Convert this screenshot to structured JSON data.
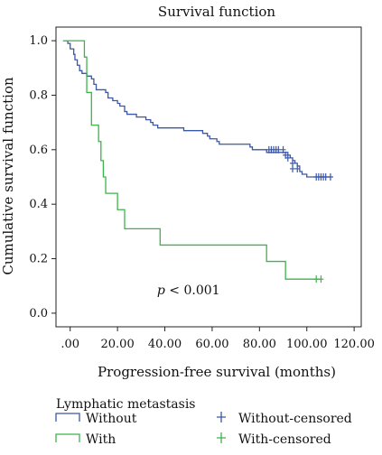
{
  "chart_data": {
    "type": "line",
    "title": "Survival function",
    "xlabel": "Progression-free survival (months)",
    "ylabel": "Cumulative survival function",
    "xlim": [
      -6,
      123
    ],
    "ylim": [
      -0.05,
      1.05
    ],
    "xticks": [
      0,
      20,
      40,
      60,
      80,
      100,
      120
    ],
    "xtick_labels": [
      ".00",
      "20.00",
      "40.00",
      "60.00",
      "80.00",
      "100.00",
      "120.00"
    ],
    "yticks": [
      0.0,
      0.2,
      0.4,
      0.6,
      0.8,
      1.0
    ],
    "ytick_labels": [
      "0.0",
      "0.2",
      "0.4",
      "0.6",
      "0.8",
      "1.0"
    ],
    "grid": false,
    "annotation": {
      "italic": "p",
      "text": " < 0.001",
      "x": 50,
      "y": 0.07
    },
    "legend_title": "Lymphatic metastasis",
    "legend_placement": "bottom",
    "series": [
      {
        "name": "Without",
        "color": "#3b57a6",
        "steps": [
          [
            -3,
            1.0
          ],
          [
            -1,
            0.99
          ],
          [
            0,
            0.97
          ],
          [
            1.5,
            0.95
          ],
          [
            2,
            0.93
          ],
          [
            3,
            0.91
          ],
          [
            4,
            0.89
          ],
          [
            5,
            0.88
          ],
          [
            7,
            0.87
          ],
          [
            9,
            0.86
          ],
          [
            10,
            0.84
          ],
          [
            11,
            0.82
          ],
          [
            15,
            0.81
          ],
          [
            16,
            0.79
          ],
          [
            18,
            0.78
          ],
          [
            20,
            0.77
          ],
          [
            21,
            0.76
          ],
          [
            23,
            0.74
          ],
          [
            24,
            0.73
          ],
          [
            28,
            0.72
          ],
          [
            32,
            0.71
          ],
          [
            34,
            0.7
          ],
          [
            35,
            0.69
          ],
          [
            37,
            0.68
          ],
          [
            48,
            0.67
          ],
          [
            56,
            0.66
          ],
          [
            58,
            0.65
          ],
          [
            59,
            0.64
          ],
          [
            62,
            0.63
          ],
          [
            63,
            0.62
          ],
          [
            76,
            0.61
          ],
          [
            77,
            0.6
          ],
          [
            83,
            0.59
          ],
          [
            92,
            0.58
          ],
          [
            93,
            0.57
          ],
          [
            94,
            0.56
          ],
          [
            95,
            0.55
          ],
          [
            96,
            0.54
          ],
          [
            97,
            0.52
          ],
          [
            98,
            0.51
          ],
          [
            100,
            0.5
          ],
          [
            110,
            0.5
          ]
        ],
        "censored": [
          [
            84,
            0.6
          ],
          [
            85,
            0.6
          ],
          [
            86,
            0.6
          ],
          [
            87,
            0.6
          ],
          [
            88,
            0.6
          ],
          [
            90,
            0.6
          ],
          [
            91,
            0.58
          ],
          [
            92,
            0.57
          ],
          [
            94,
            0.55
          ],
          [
            94,
            0.53
          ],
          [
            96,
            0.53
          ],
          [
            104,
            0.5
          ],
          [
            105,
            0.5
          ],
          [
            106,
            0.5
          ],
          [
            107,
            0.5
          ],
          [
            108,
            0.5
          ],
          [
            110,
            0.5
          ]
        ]
      },
      {
        "name": "With",
        "color": "#3cb44b",
        "steps": [
          [
            -3,
            1.0
          ],
          [
            5,
            1.0
          ],
          [
            6,
            0.94
          ],
          [
            7,
            0.81
          ],
          [
            9,
            0.69
          ],
          [
            12,
            0.63
          ],
          [
            13,
            0.56
          ],
          [
            14,
            0.5
          ],
          [
            15,
            0.44
          ],
          [
            20,
            0.38
          ],
          [
            23,
            0.31
          ],
          [
            38,
            0.25
          ],
          [
            83,
            0.19
          ],
          [
            91,
            0.125
          ],
          [
            106,
            0.125
          ]
        ],
        "censored": [
          [
            104,
            0.125
          ],
          [
            106,
            0.125
          ]
        ]
      }
    ],
    "legend": [
      {
        "label": "Without",
        "kind": "line",
        "color": "#3b57a6"
      },
      {
        "label": "With",
        "kind": "line",
        "color": "#3cb44b"
      },
      {
        "label": "Without-censored",
        "kind": "cross",
        "color": "#3b57a6"
      },
      {
        "label": "With-censored",
        "kind": "cross",
        "color": "#3cb44b"
      }
    ]
  }
}
